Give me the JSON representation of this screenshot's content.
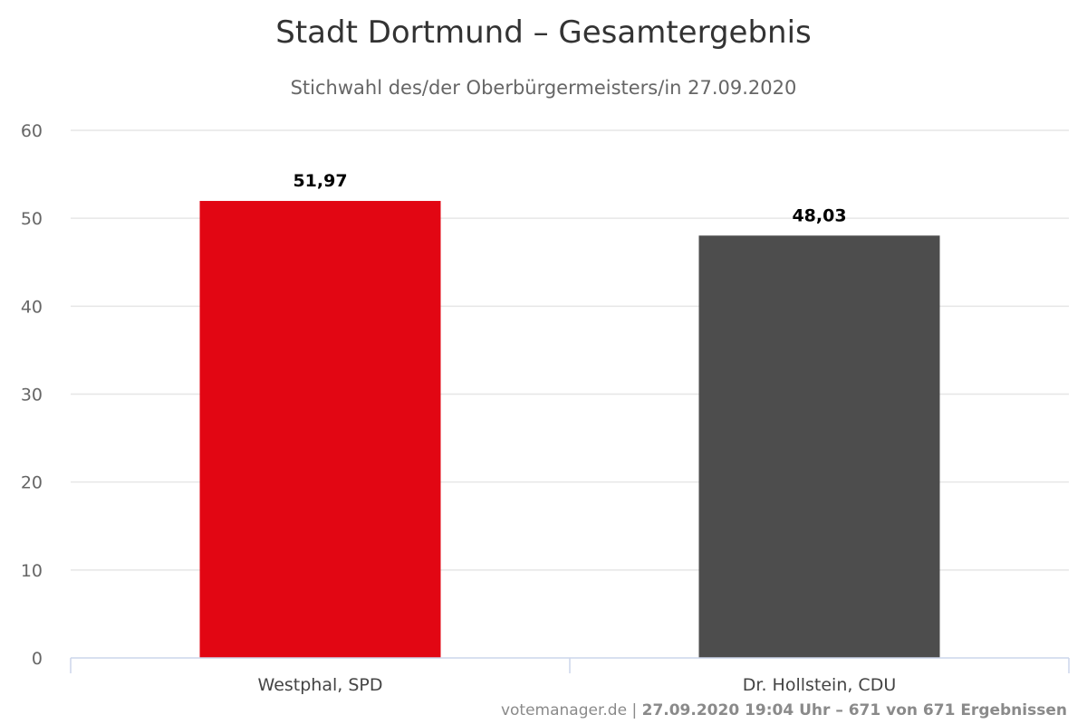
{
  "chart_data": {
    "type": "bar",
    "title": "Stadt Dortmund – Gesamtergebnis",
    "subtitle": "Stichwahl des/der Oberbürgermeisters/in 27.09.2020",
    "categories": [
      "Westphal, SPD",
      "Dr. Hollstein, CDU"
    ],
    "values": [
      51.97,
      48.03
    ],
    "data_labels": [
      "51,97",
      "48,03"
    ],
    "colors": [
      "#e20613",
      "#4d4d4d"
    ],
    "xlabel": "",
    "ylabel": "",
    "ylim": [
      0,
      60
    ],
    "yticks": [
      0,
      10,
      20,
      30,
      40,
      50,
      60
    ],
    "grid": true,
    "legend": "none"
  },
  "credits": {
    "source": "votemanager.de",
    "separator": " | ",
    "info": "27.09.2020 19:04 Uhr – 671 von 671 Ergebnissen"
  }
}
